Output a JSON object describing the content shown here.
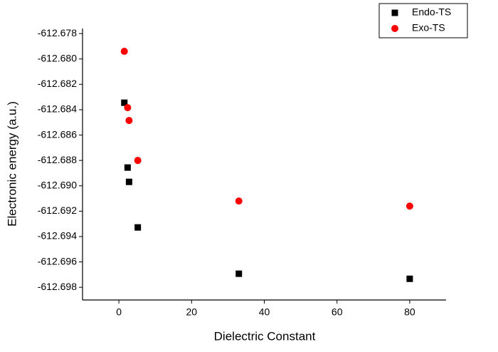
{
  "chart_data": {
    "type": "scatter",
    "x_label": "Dielectric Constant",
    "y_label": "Electronic energy (a.u.)",
    "xlim": [
      -10,
      90
    ],
    "ylim": [
      -612.699,
      -612.6776
    ],
    "xticks": [
      0,
      20,
      40,
      60,
      80
    ],
    "yticks": [
      {
        "value": -612.678,
        "label": "-612.678"
      },
      {
        "value": -612.68,
        "label": "-612.680"
      },
      {
        "value": -612.682,
        "label": "-612.682"
      },
      {
        "value": -612.684,
        "label": "-612.684"
      },
      {
        "value": -612.686,
        "label": "-612.686"
      },
      {
        "value": -612.688,
        "label": "-612.688"
      },
      {
        "value": -612.69,
        "label": "-612.690"
      },
      {
        "value": -612.692,
        "label": "-612.692"
      },
      {
        "value": -612.694,
        "label": "-612.694"
      },
      {
        "value": -612.696,
        "label": "-612.696"
      },
      {
        "value": -612.698,
        "label": "-612.698"
      }
    ],
    "legend": "upper right",
    "series": [
      {
        "name": "Endo-TS",
        "color": "#000000",
        "marker": "square",
        "x": [
          1.5,
          2.4,
          2.8,
          5.2,
          33,
          80
        ],
        "values": [
          -612.68345,
          -612.68856,
          -612.68969,
          -612.69328,
          -612.69693,
          -612.69733
        ]
      },
      {
        "name": "Exo-TS",
        "color": "#ff0000",
        "marker": "circle",
        "x": [
          1.5,
          2.4,
          2.8,
          5.2,
          33,
          80
        ],
        "values": [
          -612.6794,
          -612.68384,
          -612.68485,
          -612.688,
          -612.6912,
          -612.6916
        ]
      }
    ]
  }
}
